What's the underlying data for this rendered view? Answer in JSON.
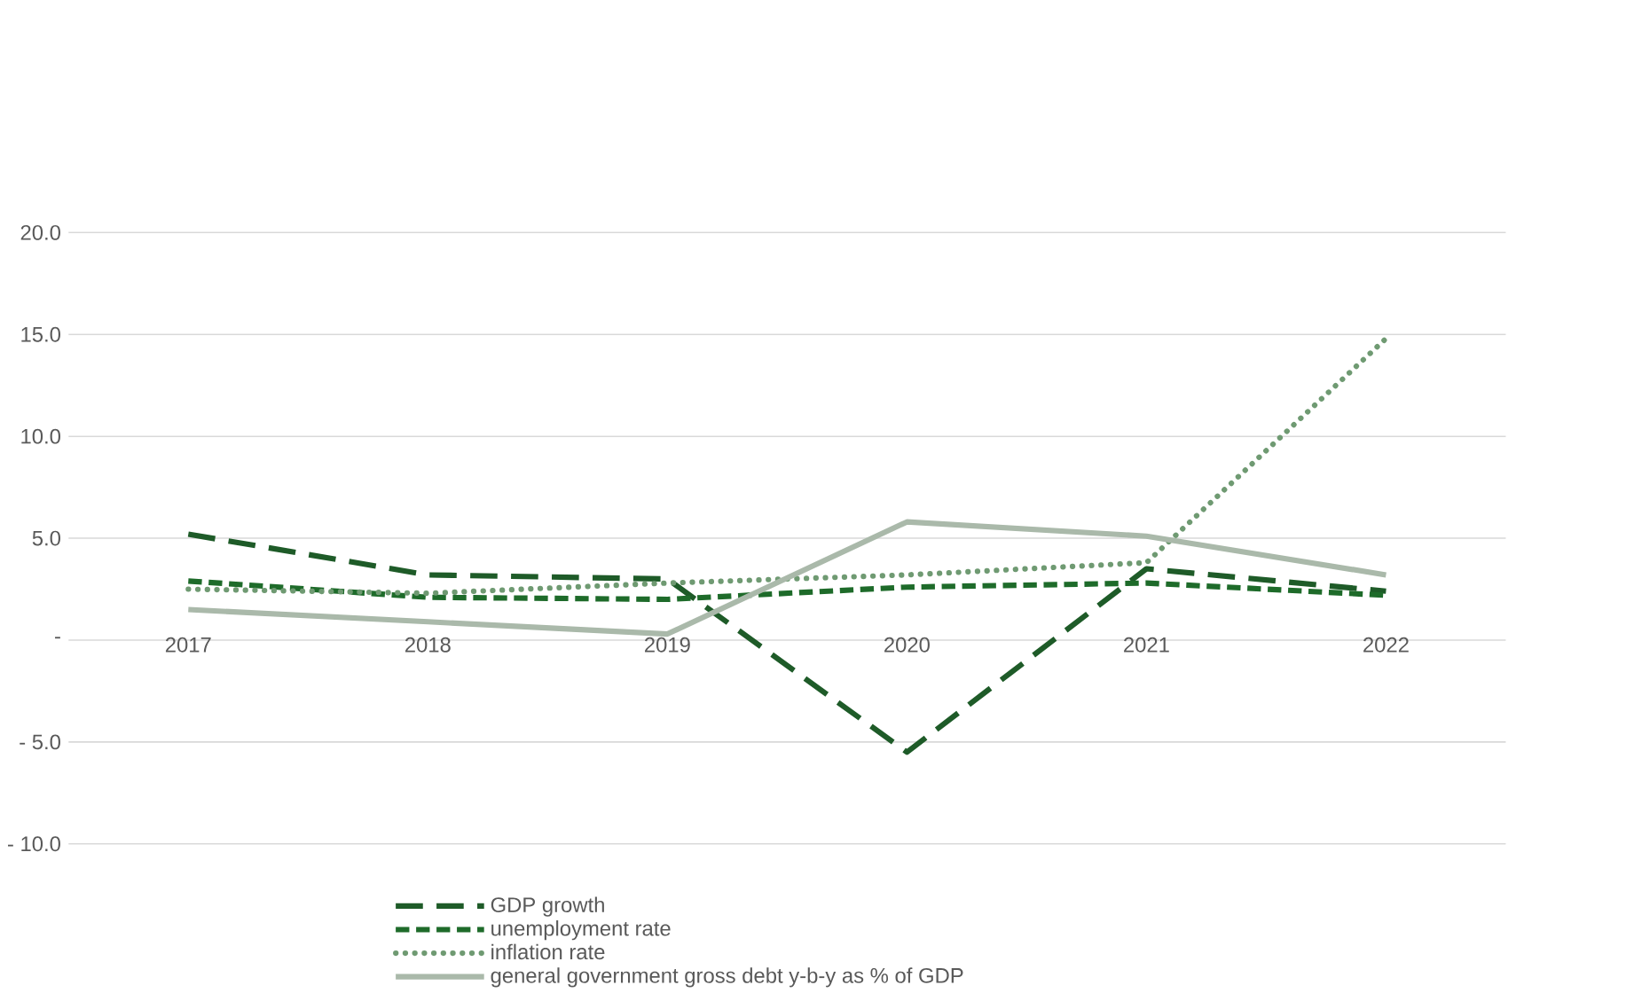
{
  "chart_data": {
    "type": "line",
    "categories": [
      "2017",
      "2018",
      "2019",
      "2020",
      "2021",
      "2022"
    ],
    "series": [
      {
        "name": "GDP growth",
        "color": "#1e5b28",
        "line_style": "dashed",
        "values": [
          5.2,
          3.2,
          3.0,
          -5.5,
          3.5,
          2.4
        ]
      },
      {
        "name": "unemployment rate",
        "color": "#1e6b2a",
        "line_style": "dashed",
        "values": [
          2.9,
          2.1,
          2.0,
          2.6,
          2.8,
          2.2
        ]
      },
      {
        "name": "inflation rate",
        "color": "#6f9a72",
        "line_style": "dotted",
        "values": [
          2.5,
          2.3,
          2.8,
          3.2,
          3.8,
          14.8
        ]
      },
      {
        "name": "general government gross debt y-b-y as % of GDP",
        "color": "#aab9aa",
        "line_style": "solid",
        "values": [
          1.5,
          0.9,
          0.3,
          5.8,
          5.1,
          3.2
        ]
      }
    ],
    "ylim": [
      -10,
      20
    ],
    "yticks": [
      {
        "value": -10,
        "label": "- 10.0"
      },
      {
        "value": -5,
        "label": "- 5.0"
      },
      {
        "value": 0,
        "label": "-"
      },
      {
        "value": 5,
        "label": "5.0"
      },
      {
        "value": 10,
        "label": "10.0"
      },
      {
        "value": 15,
        "label": "15.0"
      },
      {
        "value": 20,
        "label": "20.0"
      }
    ],
    "grid": "y",
    "legend": "bottom",
    "marker": "none"
  }
}
